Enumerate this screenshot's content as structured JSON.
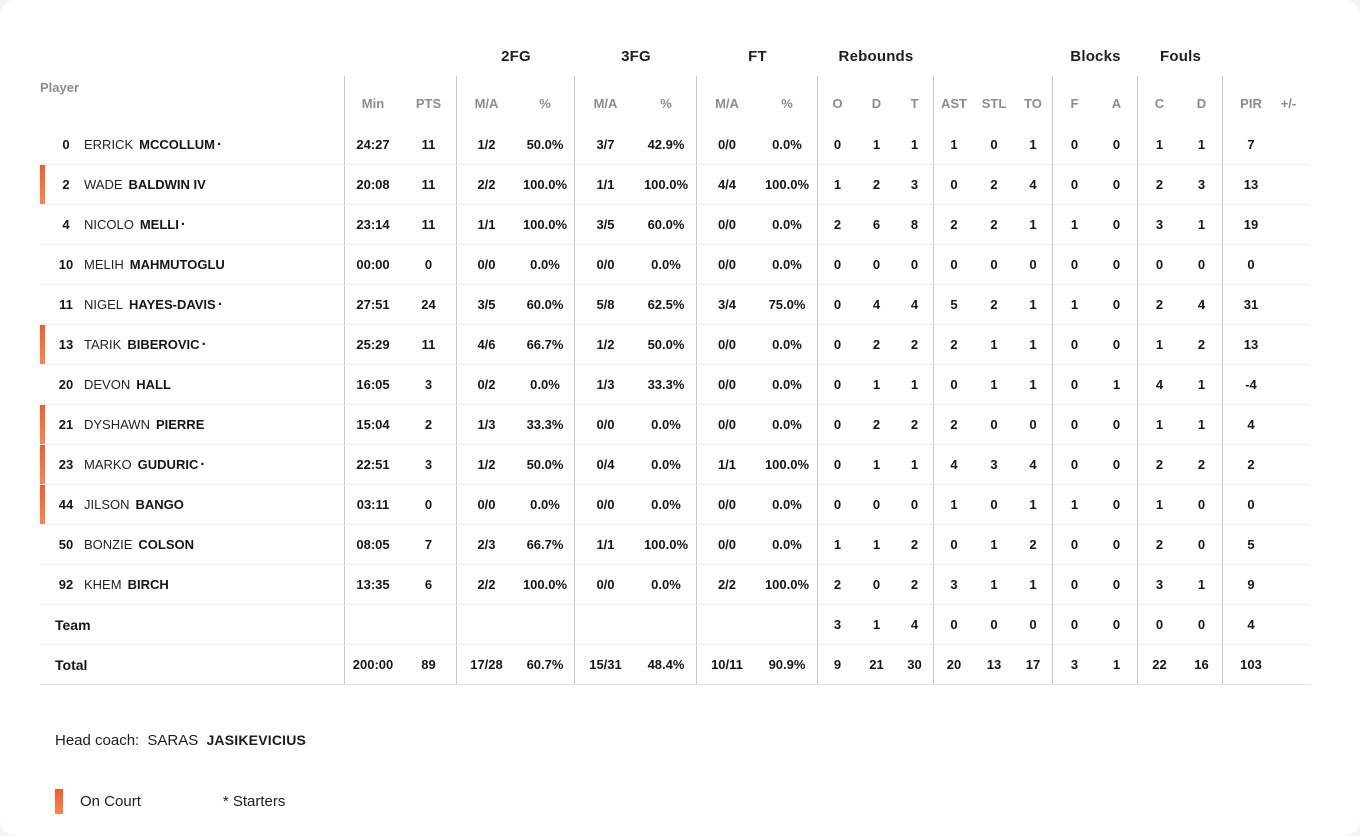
{
  "table": {
    "player_header": "Player",
    "groups": {
      "fg2": "2FG",
      "fg3": "3FG",
      "ft": "FT",
      "rebounds": "Rebounds",
      "blocks": "Blocks",
      "fouls": "Fouls"
    },
    "subheaders": {
      "min": "Min",
      "pts": "PTS",
      "ma": "M/A",
      "pct": "%",
      "o": "O",
      "d": "D",
      "t": "T",
      "ast": "AST",
      "stl": "STL",
      "to": "TO",
      "f": "F",
      "a": "A",
      "c": "C",
      "pir": "PIR",
      "plus_minus": "+/-"
    },
    "rows": [
      {
        "label": "",
        "num": "0",
        "first": "ERRICK",
        "last": "MCCOLLUM",
        "starter": "·",
        "on_court": false,
        "min": "24:27",
        "pts": "11",
        "fg2_ma": "1/2",
        "fg2_pct": "50.0%",
        "fg3_ma": "3/7",
        "fg3_pct": "42.9%",
        "ft_ma": "0/0",
        "ft_pct": "0.0%",
        "reb_o": "0",
        "reb_d": "1",
        "reb_t": "1",
        "ast": "1",
        "stl": "0",
        "to": "1",
        "blk_f": "0",
        "blk_a": "0",
        "foul_c": "1",
        "foul_d": "1",
        "pir": "7",
        "plus_minus": ""
      },
      {
        "label": "",
        "num": "2",
        "first": "WADE",
        "last": "BALDWIN IV",
        "starter": "",
        "on_court": true,
        "min": "20:08",
        "pts": "11",
        "fg2_ma": "2/2",
        "fg2_pct": "100.0%",
        "fg3_ma": "1/1",
        "fg3_pct": "100.0%",
        "ft_ma": "4/4",
        "ft_pct": "100.0%",
        "reb_o": "1",
        "reb_d": "2",
        "reb_t": "3",
        "ast": "0",
        "stl": "2",
        "to": "4",
        "blk_f": "0",
        "blk_a": "0",
        "foul_c": "2",
        "foul_d": "3",
        "pir": "13",
        "plus_minus": ""
      },
      {
        "label": "",
        "num": "4",
        "first": "NICOLO",
        "last": "MELLI",
        "starter": "·",
        "on_court": false,
        "min": "23:14",
        "pts": "11",
        "fg2_ma": "1/1",
        "fg2_pct": "100.0%",
        "fg3_ma": "3/5",
        "fg3_pct": "60.0%",
        "ft_ma": "0/0",
        "ft_pct": "0.0%",
        "reb_o": "2",
        "reb_d": "6",
        "reb_t": "8",
        "ast": "2",
        "stl": "2",
        "to": "1",
        "blk_f": "1",
        "blk_a": "0",
        "foul_c": "3",
        "foul_d": "1",
        "pir": "19",
        "plus_minus": ""
      },
      {
        "label": "",
        "num": "10",
        "first": "MELIH",
        "last": "MAHMUTOGLU",
        "starter": "",
        "on_court": false,
        "min": "00:00",
        "pts": "0",
        "fg2_ma": "0/0",
        "fg2_pct": "0.0%",
        "fg3_ma": "0/0",
        "fg3_pct": "0.0%",
        "ft_ma": "0/0",
        "ft_pct": "0.0%",
        "reb_o": "0",
        "reb_d": "0",
        "reb_t": "0",
        "ast": "0",
        "stl": "0",
        "to": "0",
        "blk_f": "0",
        "blk_a": "0",
        "foul_c": "0",
        "foul_d": "0",
        "pir": "0",
        "plus_minus": ""
      },
      {
        "label": "",
        "num": "11",
        "first": "NIGEL",
        "last": "HAYES-DAVIS",
        "starter": "·",
        "on_court": false,
        "min": "27:51",
        "pts": "24",
        "fg2_ma": "3/5",
        "fg2_pct": "60.0%",
        "fg3_ma": "5/8",
        "fg3_pct": "62.5%",
        "ft_ma": "3/4",
        "ft_pct": "75.0%",
        "reb_o": "0",
        "reb_d": "4",
        "reb_t": "4",
        "ast": "5",
        "stl": "2",
        "to": "1",
        "blk_f": "1",
        "blk_a": "0",
        "foul_c": "2",
        "foul_d": "4",
        "pir": "31",
        "plus_minus": ""
      },
      {
        "label": "",
        "num": "13",
        "first": "TARIK",
        "last": "BIBEROVIC",
        "starter": "·",
        "on_court": true,
        "min": "25:29",
        "pts": "11",
        "fg2_ma": "4/6",
        "fg2_pct": "66.7%",
        "fg3_ma": "1/2",
        "fg3_pct": "50.0%",
        "ft_ma": "0/0",
        "ft_pct": "0.0%",
        "reb_o": "0",
        "reb_d": "2",
        "reb_t": "2",
        "ast": "2",
        "stl": "1",
        "to": "1",
        "blk_f": "0",
        "blk_a": "0",
        "foul_c": "1",
        "foul_d": "2",
        "pir": "13",
        "plus_minus": ""
      },
      {
        "label": "",
        "num": "20",
        "first": "DEVON",
        "last": "HALL",
        "starter": "",
        "on_court": false,
        "min": "16:05",
        "pts": "3",
        "fg2_ma": "0/2",
        "fg2_pct": "0.0%",
        "fg3_ma": "1/3",
        "fg3_pct": "33.3%",
        "ft_ma": "0/0",
        "ft_pct": "0.0%",
        "reb_o": "0",
        "reb_d": "1",
        "reb_t": "1",
        "ast": "0",
        "stl": "1",
        "to": "1",
        "blk_f": "0",
        "blk_a": "1",
        "foul_c": "4",
        "foul_d": "1",
        "pir": "-4",
        "plus_minus": ""
      },
      {
        "label": "",
        "num": "21",
        "first": "DYSHAWN",
        "last": "PIERRE",
        "starter": "",
        "on_court": true,
        "min": "15:04",
        "pts": "2",
        "fg2_ma": "1/3",
        "fg2_pct": "33.3%",
        "fg3_ma": "0/0",
        "fg3_pct": "0.0%",
        "ft_ma": "0/0",
        "ft_pct": "0.0%",
        "reb_o": "0",
        "reb_d": "2",
        "reb_t": "2",
        "ast": "2",
        "stl": "0",
        "to": "0",
        "blk_f": "0",
        "blk_a": "0",
        "foul_c": "1",
        "foul_d": "1",
        "pir": "4",
        "plus_minus": ""
      },
      {
        "label": "",
        "num": "23",
        "first": "MARKO",
        "last": "GUDURIC",
        "starter": "·",
        "on_court": true,
        "min": "22:51",
        "pts": "3",
        "fg2_ma": "1/2",
        "fg2_pct": "50.0%",
        "fg3_ma": "0/4",
        "fg3_pct": "0.0%",
        "ft_ma": "1/1",
        "ft_pct": "100.0%",
        "reb_o": "0",
        "reb_d": "1",
        "reb_t": "1",
        "ast": "4",
        "stl": "3",
        "to": "4",
        "blk_f": "0",
        "blk_a": "0",
        "foul_c": "2",
        "foul_d": "2",
        "pir": "2",
        "plus_minus": ""
      },
      {
        "label": "",
        "num": "44",
        "first": "JILSON",
        "last": "BANGO",
        "starter": "",
        "on_court": true,
        "min": "03:11",
        "pts": "0",
        "fg2_ma": "0/0",
        "fg2_pct": "0.0%",
        "fg3_ma": "0/0",
        "fg3_pct": "0.0%",
        "ft_ma": "0/0",
        "ft_pct": "0.0%",
        "reb_o": "0",
        "reb_d": "0",
        "reb_t": "0",
        "ast": "1",
        "stl": "0",
        "to": "1",
        "blk_f": "1",
        "blk_a": "0",
        "foul_c": "1",
        "foul_d": "0",
        "pir": "0",
        "plus_minus": ""
      },
      {
        "label": "",
        "num": "50",
        "first": "BONZIE",
        "last": "COLSON",
        "starter": "",
        "on_court": false,
        "min": "08:05",
        "pts": "7",
        "fg2_ma": "2/3",
        "fg2_pct": "66.7%",
        "fg3_ma": "1/1",
        "fg3_pct": "100.0%",
        "ft_ma": "0/0",
        "ft_pct": "0.0%",
        "reb_o": "1",
        "reb_d": "1",
        "reb_t": "2",
        "ast": "0",
        "stl": "1",
        "to": "2",
        "blk_f": "0",
        "blk_a": "0",
        "foul_c": "2",
        "foul_d": "0",
        "pir": "5",
        "plus_minus": ""
      },
      {
        "label": "",
        "num": "92",
        "first": "KHEM",
        "last": "BIRCH",
        "starter": "",
        "on_court": false,
        "min": "13:35",
        "pts": "6",
        "fg2_ma": "2/2",
        "fg2_pct": "100.0%",
        "fg3_ma": "0/0",
        "fg3_pct": "0.0%",
        "ft_ma": "2/2",
        "ft_pct": "100.0%",
        "reb_o": "2",
        "reb_d": "0",
        "reb_t": "2",
        "ast": "3",
        "stl": "1",
        "to": "1",
        "blk_f": "0",
        "blk_a": "0",
        "foul_c": "3",
        "foul_d": "1",
        "pir": "9",
        "plus_minus": ""
      },
      {
        "label": "Team",
        "num": "",
        "first": "",
        "last": "",
        "starter": "",
        "on_court": false,
        "min": "",
        "pts": "",
        "fg2_ma": "",
        "fg2_pct": "",
        "fg3_ma": "",
        "fg3_pct": "",
        "ft_ma": "",
        "ft_pct": "",
        "reb_o": "3",
        "reb_d": "1",
        "reb_t": "4",
        "ast": "0",
        "stl": "0",
        "to": "0",
        "blk_f": "0",
        "blk_a": "0",
        "foul_c": "0",
        "foul_d": "0",
        "pir": "4",
        "plus_minus": ""
      },
      {
        "label": "Total",
        "num": "",
        "first": "",
        "last": "",
        "starter": "",
        "on_court": false,
        "min": "200:00",
        "pts": "89",
        "fg2_ma": "17/28",
        "fg2_pct": "60.7%",
        "fg3_ma": "15/31",
        "fg3_pct": "48.4%",
        "ft_ma": "10/11",
        "ft_pct": "90.9%",
        "reb_o": "9",
        "reb_d": "21",
        "reb_t": "30",
        "ast": "20",
        "stl": "13",
        "to": "17",
        "blk_f": "3",
        "blk_a": "1",
        "foul_c": "22",
        "foul_d": "16",
        "pir": "103",
        "plus_minus": ""
      }
    ]
  },
  "footer": {
    "head_coach_label": "Head coach:",
    "head_coach_first": "SARAS",
    "head_coach_last": "JASIKEVICIUS",
    "legend_on_court": "On Court",
    "legend_starters": "* Starters"
  },
  "colors": {
    "on_court_accent_top": "#f9582a",
    "on_court_accent_bottom": "#f9874f"
  }
}
